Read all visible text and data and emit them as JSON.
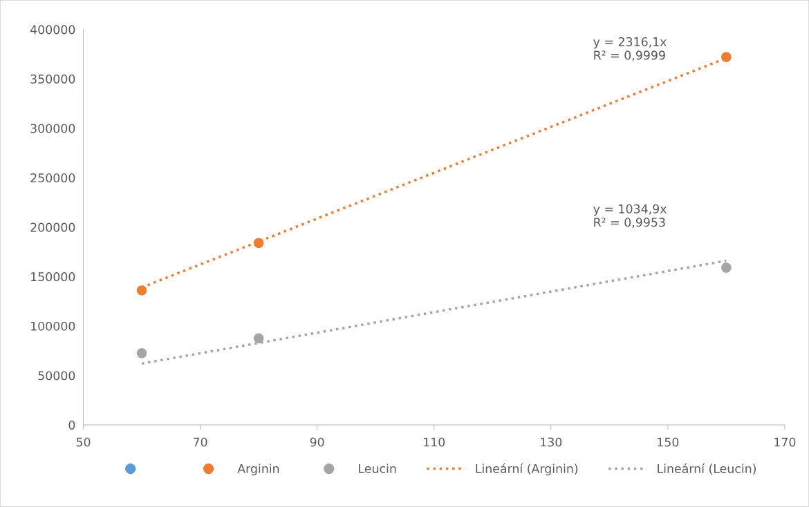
{
  "chart_data": {
    "type": "scatter",
    "xlim": [
      50,
      170
    ],
    "xticks": [
      50,
      70,
      90,
      110,
      130,
      150,
      170
    ],
    "ylim": [
      0,
      400000
    ],
    "yticks": [
      0,
      50000,
      100000,
      150000,
      200000,
      250000,
      300000,
      350000,
      400000
    ],
    "grid": false,
    "legend": "bottom",
    "marker": "circle",
    "series": [
      {
        "color": "#5b9bd5"
      },
      {
        "name": "Arginin",
        "color": "#ed7d31",
        "x": [
          60,
          80,
          160
        ],
        "values": [
          136000,
          184000,
          372000
        ]
      },
      {
        "name": "Leucin",
        "color": "#a5a5a5",
        "x": [
          60,
          80,
          160
        ],
        "values": [
          72500,
          87500,
          159000
        ]
      },
      {
        "type": "line",
        "name": "Lineární (Arginin)",
        "color": "#ed7d31",
        "line_style": "dotted",
        "marker": "none",
        "x": [
          60,
          160
        ],
        "values": [
          139000,
          371000
        ]
      },
      {
        "type": "line",
        "name": "Lineární (Leucin)",
        "color": "#a5a5a5",
        "line_style": "dotted",
        "marker": "none",
        "x": [
          60,
          160
        ],
        "values": [
          62000,
          166000
        ]
      }
    ],
    "annotations": [
      "y = 2316,1x\nR² = 0,9999",
      "y = 1034,9x\nR² = 0,9953"
    ]
  }
}
